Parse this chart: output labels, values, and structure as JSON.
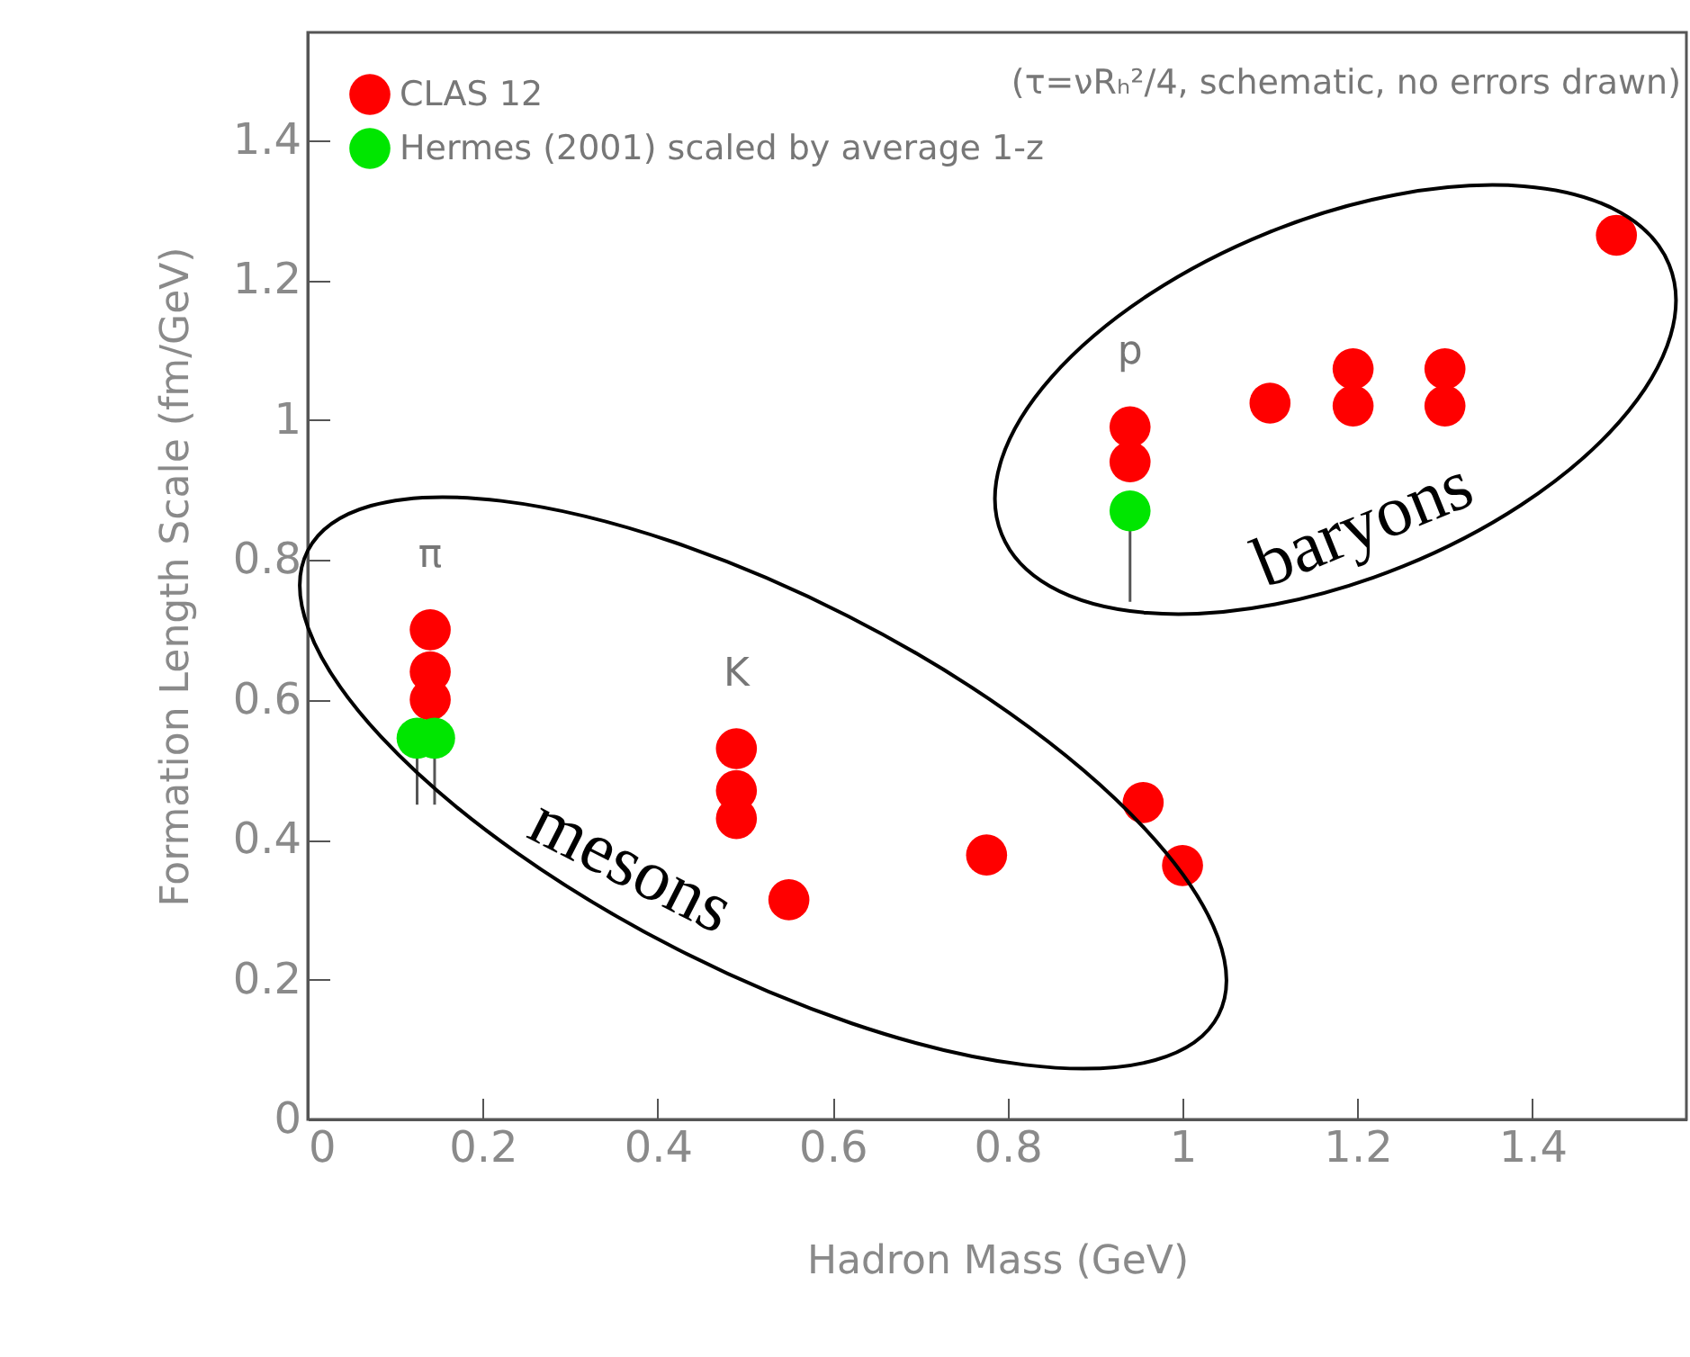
{
  "chart_data": {
    "type": "scatter",
    "xlabel": "Hadron Mass (GeV)",
    "ylabel": "Formation Length Scale (fm/GeV)",
    "xlim": [
      0,
      1.576
    ],
    "ylim": [
      0,
      1.554
    ],
    "xticks": [
      0,
      0.2,
      0.4,
      0.6,
      0.8,
      1,
      1.2,
      1.4
    ],
    "yticks": [
      0,
      0.2,
      0.4,
      0.6,
      0.8,
      1,
      1.2,
      1.4
    ],
    "marker": "circle",
    "grid": false,
    "legend": "top left",
    "series": [
      {
        "name": "CLAS 12",
        "color": "#ff0000",
        "x": [
          0.14,
          0.14,
          0.14,
          0.49,
          0.49,
          0.49,
          0.55,
          0.776,
          0.955,
          1.0,
          0.94,
          0.94,
          1.1,
          1.195,
          1.195,
          1.3,
          1.3,
          1.496
        ],
        "values": [
          0.7,
          0.64,
          0.6,
          0.53,
          0.47,
          0.43,
          0.314,
          0.378,
          0.453,
          0.363,
          0.99,
          0.94,
          1.024,
          1.073,
          1.02,
          1.073,
          1.02,
          1.264
        ]
      },
      {
        "name": "Hermes (2001) scaled by average 1-z",
        "color": "#00e600",
        "x": [
          0.125,
          0.145,
          0.94
        ],
        "values": [
          0.545,
          0.545,
          0.87
        ],
        "errors": [
          [
            0.45,
            0.545
          ],
          [
            0.45,
            0.545
          ],
          [
            0.74,
            0.87
          ]
        ]
      }
    ],
    "annotations": [
      {
        "text": "π",
        "x": 0.14,
        "y": 0.7
      },
      {
        "text": "K",
        "x": 0.49,
        "y": 0.53
      },
      {
        "text": "p",
        "x": 0.94,
        "y": 0.99
      },
      "mesons",
      "baryons",
      "(τ=νRₕ²/4, schematic, no errors drawn)"
    ]
  }
}
